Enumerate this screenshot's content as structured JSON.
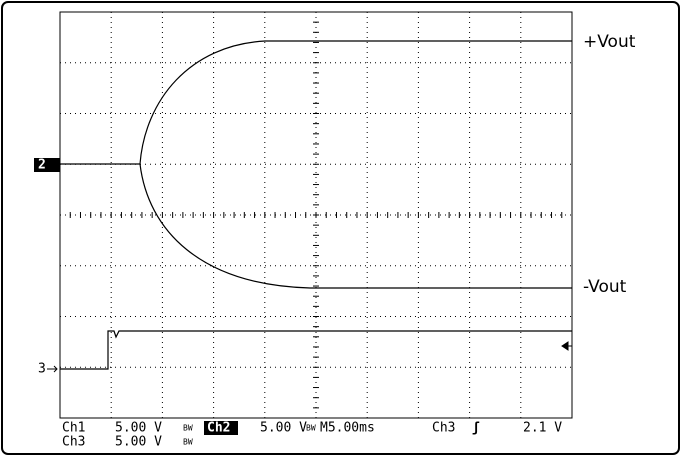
{
  "labels": {
    "upper": "+Vout",
    "lower": "-Vout"
  },
  "markers": {
    "ch2": "2",
    "ch3": "3"
  },
  "status": {
    "row1": {
      "ch1": "Ch1",
      "ch1_scale": "5.00 V",
      "ch1_bw": "BW",
      "ch2": "Ch2",
      "ch2_scale": "5.00 V",
      "ch2_bw": "BW",
      "timebase": "M5.00ms",
      "trigger_source": "Ch3",
      "trigger_slope": "ʃ",
      "trigger_level": "2.1 V"
    },
    "row2": {
      "ch3": "Ch3",
      "ch3_scale": "5.00 V",
      "ch3_bw": "BW"
    }
  }
}
